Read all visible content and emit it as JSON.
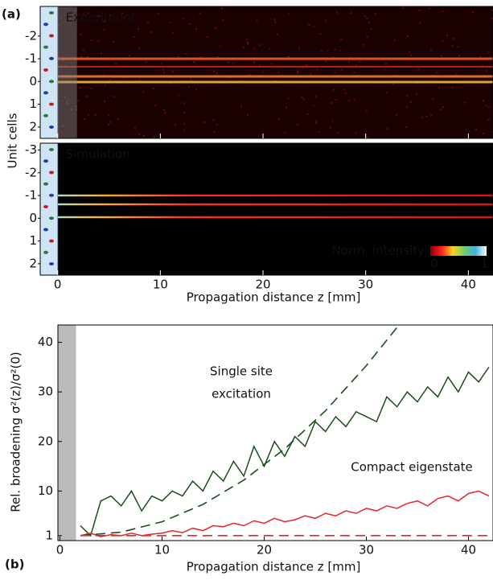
{
  "chart_data": [
    {
      "type": "heatmap",
      "panel_label": "(a)",
      "title": "Experiment",
      "xlim": [
        -1.7,
        42.4
      ],
      "ylim": [
        -3.3,
        2.5
      ],
      "yticks": [
        -2,
        -1,
        0,
        1,
        2
      ]
    },
    {
      "type": "heatmap",
      "title": "Simulation",
      "xlim": [
        -1.7,
        42.4
      ],
      "ylim": [
        -3.3,
        2.5
      ],
      "yticks": [
        -3,
        -2,
        -1,
        0,
        1,
        2
      ],
      "xticks": [
        0,
        10,
        20,
        30,
        40
      ],
      "xlabel": "Propagation distance z [mm]",
      "ylabel": "Unit cells",
      "colorbar": {
        "label": "Norm. intensity",
        "ticks": [
          0,
          1
        ]
      }
    },
    {
      "type": "line",
      "panel_label": "(b)",
      "xlabel": "Propagation distance z [mm]",
      "ylabel": "Rel. broadening σ²(z)/σ²(0)",
      "xlim": [
        -0.2,
        42.4
      ],
      "ylim": [
        0,
        43.5
      ],
      "xticks": [
        0,
        10,
        20,
        30,
        40
      ],
      "yticks": [
        1,
        10,
        20,
        30,
        40
      ],
      "annotations": [
        {
          "text": [
            "Single site",
            "excitation"
          ],
          "color": "#1b4d1b"
        },
        {
          "text": [
            "Compact eigenstate"
          ],
          "color": "#e8262a"
        }
      ],
      "series": [
        {
          "color": "#1b4d1b",
          "dash": false,
          "x": [
            2,
            3,
            4,
            5,
            6,
            7,
            8,
            9,
            10,
            11,
            12,
            13,
            14,
            15,
            16,
            17,
            18,
            19,
            20,
            21,
            22,
            23,
            24,
            25,
            26,
            27,
            28,
            29,
            30,
            31,
            32,
            33,
            34,
            35,
            36,
            37,
            38,
            39,
            40,
            41,
            42
          ],
          "values": [
            3,
            1,
            8,
            9,
            7,
            10,
            6,
            9,
            8,
            10,
            9,
            12,
            10,
            14,
            12,
            16,
            13,
            19,
            15,
            20,
            17,
            21,
            19,
            24,
            22,
            25,
            23,
            26,
            25,
            24,
            29,
            27,
            30,
            28,
            31,
            29,
            33,
            30,
            34,
            32,
            35
          ]
        },
        {
          "color": "#e8262a",
          "dash": false,
          "x": [
            2,
            3,
            4,
            5,
            6,
            7,
            8,
            9,
            10,
            11,
            12,
            13,
            14,
            15,
            16,
            17,
            18,
            19,
            20,
            21,
            22,
            23,
            24,
            25,
            26,
            27,
            28,
            29,
            30,
            31,
            32,
            33,
            34,
            35,
            36,
            37,
            38,
            39,
            40,
            41,
            42
          ],
          "values": [
            1,
            1.5,
            0.8,
            1.2,
            1,
            1.5,
            1,
            1.3,
            1.5,
            2,
            1.6,
            2.5,
            2,
            3,
            2.8,
            3.5,
            3,
            4,
            3.5,
            4.5,
            3.8,
            4.2,
            5,
            4.5,
            5.5,
            5,
            6,
            5.5,
            6.5,
            6,
            7,
            6.5,
            7.5,
            8,
            7,
            8.5,
            9,
            8,
            9.5,
            10,
            9
          ]
        },
        {
          "color": "#1b4d1b",
          "dash": true,
          "x": [
            2,
            6,
            10,
            14,
            18,
            22,
            26,
            30,
            33
          ],
          "values": [
            1,
            1.7,
            3.8,
            7.3,
            12.2,
            18.5,
            26.2,
            35.3,
            43
          ]
        },
        {
          "color": "#e8262a",
          "dash": true,
          "x": [
            2,
            42
          ],
          "values": [
            1,
            1
          ]
        }
      ]
    }
  ]
}
